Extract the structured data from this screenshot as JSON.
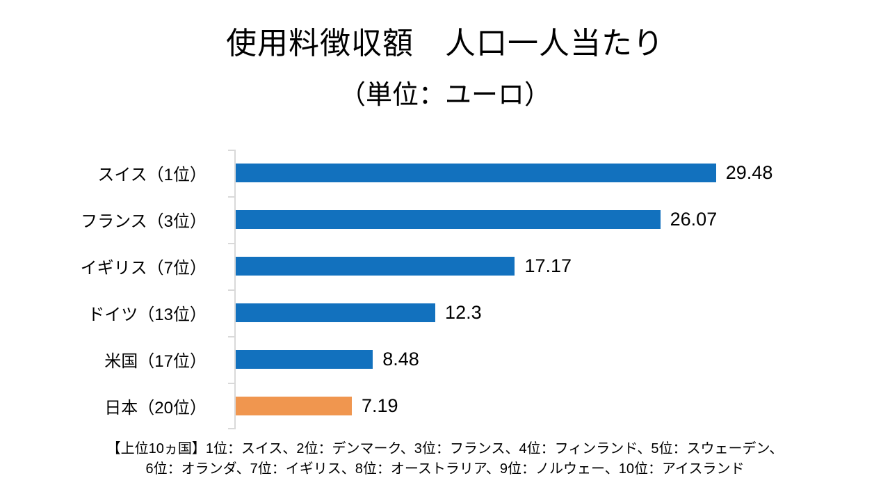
{
  "page": {
    "background": "#FFFFFF"
  },
  "header": {
    "title": "使用料徴収額　人口一人当たり",
    "subtitle": "（単位：ユーロ）"
  },
  "chart_data": {
    "type": "bar",
    "orientation": "horizontal",
    "title": "使用料徴収額　人口一人当たり",
    "subtitle": "（単位：ユーロ）",
    "unit": "ユーロ",
    "categories": [
      "スイス（1位）",
      "フランス（3位）",
      "イギリス（7位）",
      "ドイツ（13位）",
      "米国（17位）",
      "日本（20位）"
    ],
    "values": [
      29.48,
      26.07,
      17.17,
      12.3,
      8.48,
      7.19
    ],
    "value_labels": [
      "29.48",
      "26.07",
      "17.17",
      "12.3",
      "8.48",
      "7.19"
    ],
    "bar_colors": [
      "#1271BE",
      "#1271BE",
      "#1271BE",
      "#1271BE",
      "#1271BE",
      "#F0964F"
    ],
    "default_color": "#1271BE",
    "highlight_color": "#F0964F",
    "axis_color": "#D9D9D9",
    "xlim": [
      0,
      30
    ],
    "grid": false,
    "legend": "none"
  },
  "footnote": {
    "line1": "【上位10ヵ国】1位：スイス、2位：デンマーク、3位：フランス、4位：フィンランド、5位：スウェーデン、",
    "line2": "6位：オランダ、7位：イギリス、8位：オーストラリア、9位：ノルウェー、10位：アイスランド"
  }
}
